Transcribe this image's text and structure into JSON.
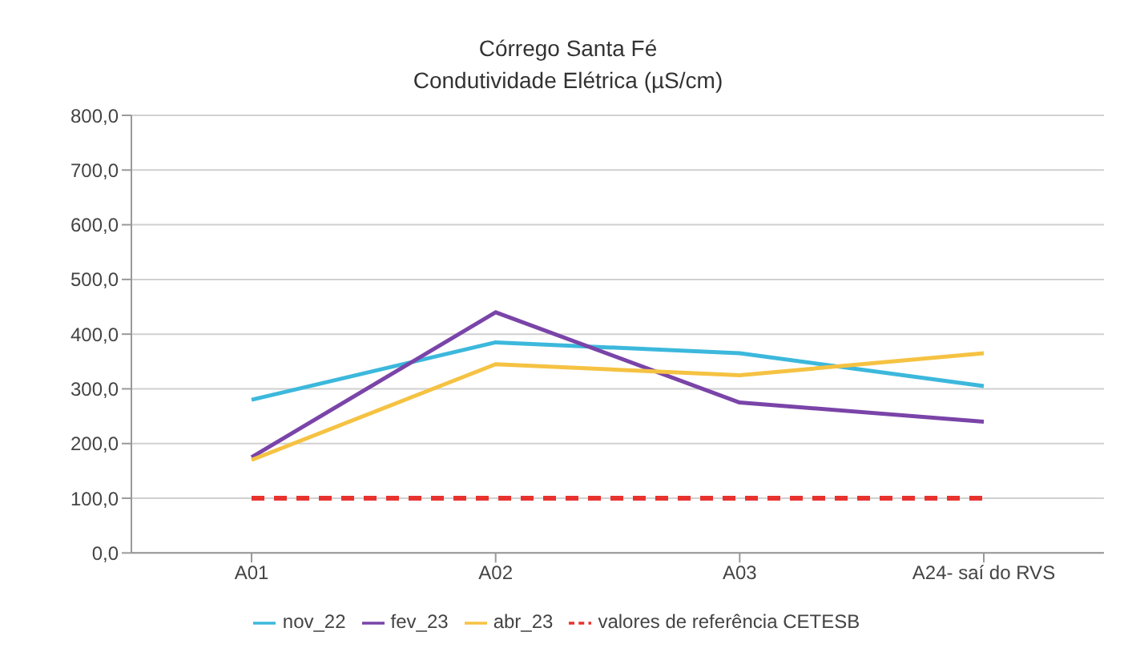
{
  "chart_data": {
    "type": "line",
    "title": "Córrego Santa Fé",
    "subtitle": "Condutividade Elétrica  (µS/cm)",
    "categories": [
      "A01",
      "A02",
      "A03",
      "A24- saí do RVS"
    ],
    "series": [
      {
        "name": "nov_22",
        "color": "#3cb8dc",
        "values": [
          280,
          385,
          365,
          305
        ]
      },
      {
        "name": "fev_23",
        "color": "#7a44a8",
        "values": [
          175,
          440,
          275,
          240
        ]
      },
      {
        "name": "abr_23",
        "color": "#f5c242",
        "values": [
          170,
          345,
          325,
          365
        ]
      },
      {
        "name": "valores de referência CETESB",
        "color": "#e8322e",
        "values": [
          100,
          100,
          100,
          100
        ],
        "line_style": "dashed"
      }
    ],
    "ylim": [
      0,
      800
    ],
    "yticks": [
      {
        "value": 0,
        "label": "0,0"
      },
      {
        "value": 100,
        "label": "100,0"
      },
      {
        "value": 200,
        "label": "200,0"
      },
      {
        "value": 300,
        "label": "300,0"
      },
      {
        "value": 400,
        "label": "400,0"
      },
      {
        "value": 500,
        "label": "500,0"
      },
      {
        "value": 600,
        "label": "600,0"
      },
      {
        "value": 700,
        "label": "700,0"
      },
      {
        "value": 800,
        "label": "800,0"
      }
    ],
    "grid": "y",
    "legend": "bottom",
    "marker": "none",
    "line_style": "solid"
  }
}
